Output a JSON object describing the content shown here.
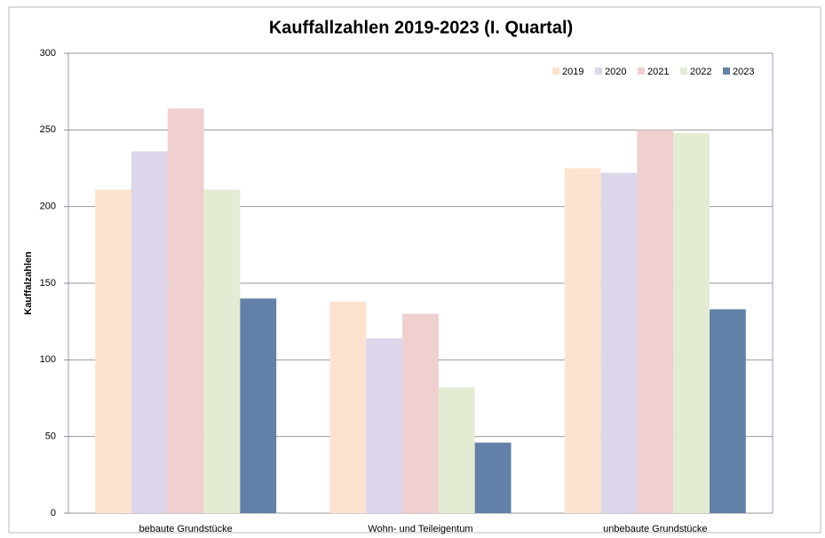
{
  "chart_data": {
    "type": "bar",
    "title": "Kauffallzahlen 2019-2023 (I. Quartal)",
    "y_label": "Kauffalzahlen",
    "categories": [
      "bebaute Grundstücke",
      "Wohn- und Teileigentum",
      "unbebaute Grundstücke"
    ],
    "series": [
      {
        "name": "2019",
        "color": "#fde3cf",
        "values": [
          211,
          138,
          225
        ]
      },
      {
        "name": "2020",
        "color": "#ddd5ea",
        "values": [
          236,
          114,
          222
        ]
      },
      {
        "name": "2021",
        "color": "#f0cfd0",
        "values": [
          264,
          130,
          250
        ]
      },
      {
        "name": "2022",
        "color": "#e3ecd3",
        "values": [
          211,
          82,
          248
        ]
      },
      {
        "name": "2023",
        "color": "#6381a8",
        "values": [
          140,
          46,
          133
        ]
      }
    ],
    "ylim": [
      0,
      300
    ],
    "yticks": [
      0,
      50,
      100,
      150,
      200,
      250,
      300
    ],
    "grid": true,
    "legend": "top-right"
  }
}
